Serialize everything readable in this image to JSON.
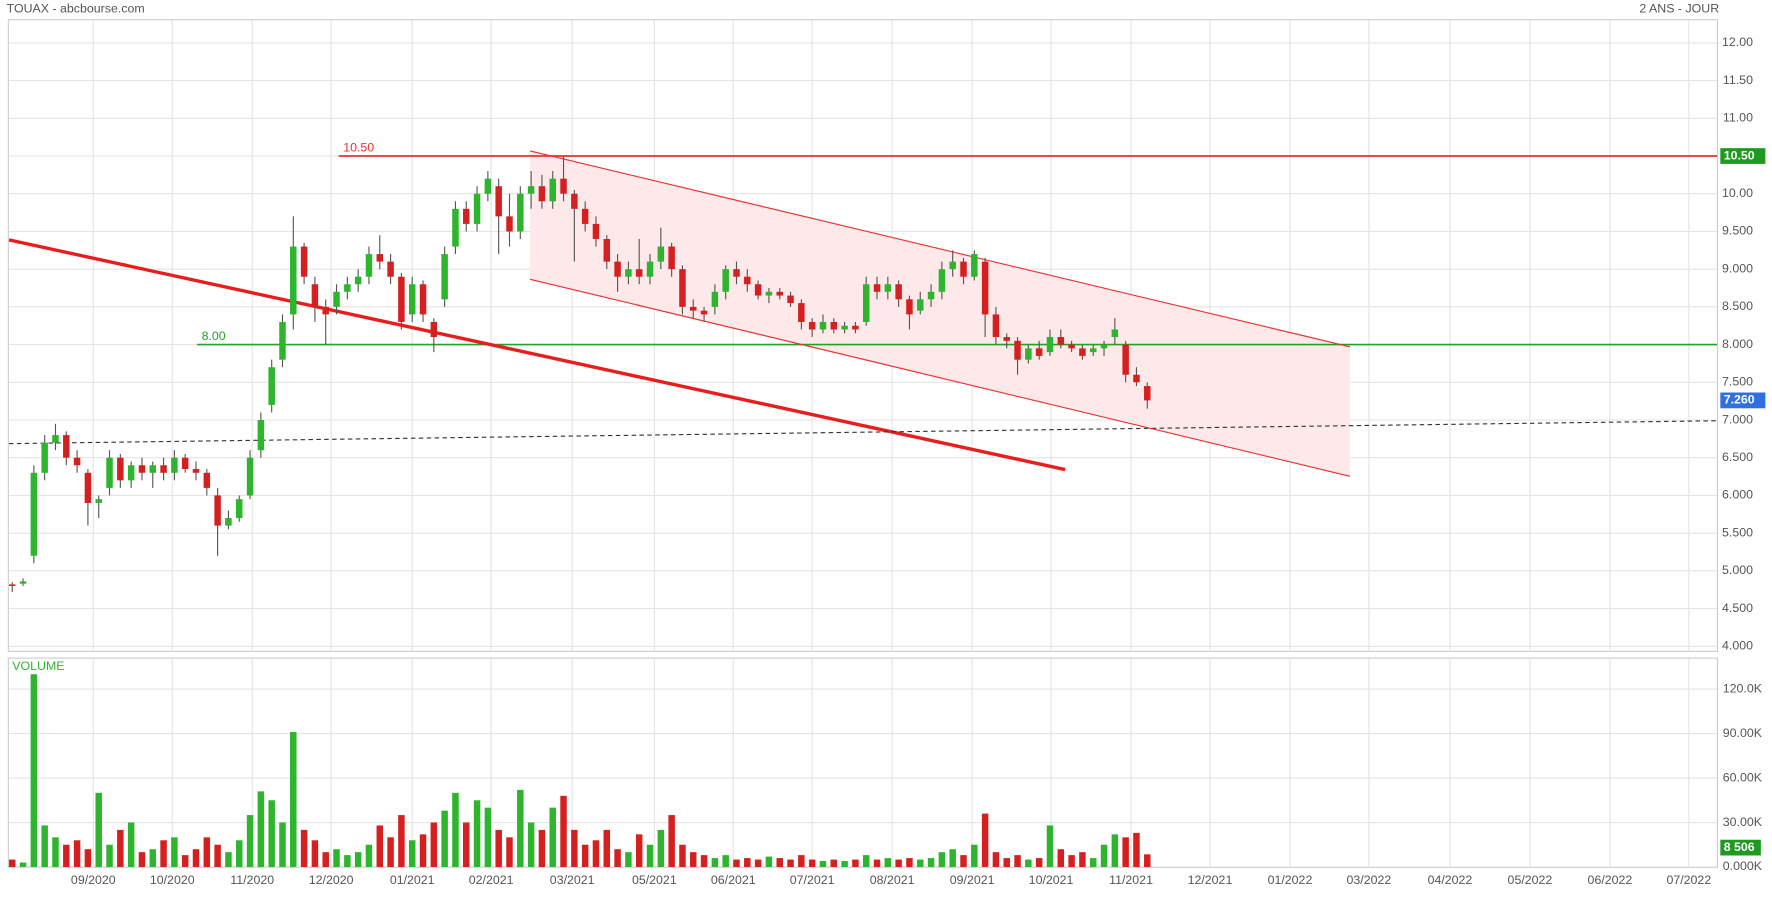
{
  "chart_data": {
    "type": "candlestick",
    "title": "TOUAX - abcbourse.com",
    "subtitle": "2 ANS - JOUR",
    "volume_label": "VOLUME",
    "up_color": "#2db52d",
    "down_color": "#d62020",
    "grid": true,
    "xlim": [
      -0.31,
      157.7
    ],
    "xticks": [
      {
        "value": 7.5,
        "label": "09/2020"
      },
      {
        "value": 14.8,
        "label": "10/2020"
      },
      {
        "value": 22.2,
        "label": "11/2020"
      },
      {
        "value": 29.5,
        "label": "12/2020"
      },
      {
        "value": 37,
        "label": "01/2021"
      },
      {
        "value": 44.3,
        "label": "02/2021"
      },
      {
        "value": 51.8,
        "label": "03/2021"
      },
      {
        "value": 59.4,
        "label": "05/2021"
      },
      {
        "value": 66.7,
        "label": "06/2021"
      },
      {
        "value": 74,
        "label": "07/2021"
      },
      {
        "value": 81.4,
        "label": "08/2021"
      },
      {
        "value": 88.8,
        "label": "09/2021"
      },
      {
        "value": 96.1,
        "label": "10/2021"
      },
      {
        "value": 103.5,
        "label": "11/2021"
      },
      {
        "value": 110.8,
        "label": "12/2021"
      },
      {
        "value": 118.2,
        "label": "01/2022"
      },
      {
        "value": 125.5,
        "label": "03/2022"
      },
      {
        "value": 133,
        "label": "04/2022"
      },
      {
        "value": 140.4,
        "label": "05/2022"
      },
      {
        "value": 147.8,
        "label": "06/2022"
      },
      {
        "value": 155.1,
        "label": "07/2022"
      }
    ],
    "ylim": [
      3.94,
      12.3
    ],
    "yticks": [
      {
        "value": 4,
        "label": "4.000"
      },
      {
        "value": 4.5,
        "label": "4.500"
      },
      {
        "value": 5,
        "label": "5.000"
      },
      {
        "value": 5.5,
        "label": "5.500"
      },
      {
        "value": 6,
        "label": "6.000"
      },
      {
        "value": 6.5,
        "label": "6.500"
      },
      {
        "value": 7,
        "label": "7.000"
      },
      {
        "value": 7.5,
        "label": "7.500"
      },
      {
        "value": 8,
        "label": "8.000"
      },
      {
        "value": 8.5,
        "label": "8.500"
      },
      {
        "value": 9,
        "label": "9.000"
      },
      {
        "value": 9.5,
        "label": "9.500"
      },
      {
        "value": 10,
        "label": "10.00"
      },
      {
        "value": 10.5,
        "label": "10.50"
      },
      {
        "value": 11,
        "label": "11.00"
      },
      {
        "value": 11.5,
        "label": "11.50"
      },
      {
        "value": 12,
        "label": "12.00"
      }
    ],
    "y2lim": [
      0,
      140500
    ],
    "y2ticks": [
      {
        "value": 0,
        "label": "0.000K"
      },
      {
        "value": 30000,
        "label": "30.00K"
      },
      {
        "value": 60000,
        "label": "60.00K"
      },
      {
        "value": 90000,
        "label": "90.00K"
      },
      {
        "value": 120000,
        "label": "120.0K"
      }
    ],
    "candles": [
      [
        4.82,
        4.85,
        4.72,
        4.8
      ],
      [
        4.83,
        4.9,
        4.8,
        4.86
      ],
      [
        5.2,
        6.4,
        5.1,
        6.3
      ],
      [
        6.3,
        6.8,
        6.2,
        6.7
      ],
      [
        6.7,
        6.95,
        6.6,
        6.8
      ],
      [
        6.8,
        6.85,
        6.4,
        6.5
      ],
      [
        6.5,
        6.6,
        6.3,
        6.4
      ],
      [
        6.3,
        6.35,
        5.6,
        5.9
      ],
      [
        5.9,
        6,
        5.7,
        5.95
      ],
      [
        6.1,
        6.6,
        6,
        6.5
      ],
      [
        6.5,
        6.55,
        6.1,
        6.2
      ],
      [
        6.2,
        6.45,
        6.1,
        6.4
      ],
      [
        6.4,
        6.5,
        6.2,
        6.3
      ],
      [
        6.3,
        6.45,
        6.1,
        6.4
      ],
      [
        6.4,
        6.5,
        6.2,
        6.3
      ],
      [
        6.3,
        6.6,
        6.2,
        6.5
      ],
      [
        6.5,
        6.55,
        6.3,
        6.35
      ],
      [
        6.35,
        6.45,
        6.2,
        6.3
      ],
      [
        6.3,
        6.35,
        6,
        6.1
      ],
      [
        6,
        6.1,
        5.2,
        5.6
      ],
      [
        5.6,
        5.8,
        5.55,
        5.7
      ],
      [
        5.7,
        6,
        5.65,
        5.95
      ],
      [
        6,
        6.6,
        5.95,
        6.5
      ],
      [
        6.6,
        7.1,
        6.5,
        7
      ],
      [
        7.2,
        7.8,
        7.1,
        7.7
      ],
      [
        7.8,
        8.4,
        7.7,
        8.3
      ],
      [
        8.4,
        9.7,
        8.2,
        9.3
      ],
      [
        9.3,
        9.35,
        8.8,
        8.9
      ],
      [
        8.8,
        8.9,
        8.3,
        8.5
      ],
      [
        8.5,
        8.6,
        8,
        8.4
      ],
      [
        8.5,
        8.8,
        8.4,
        8.7
      ],
      [
        8.7,
        8.9,
        8.6,
        8.8
      ],
      [
        8.8,
        9,
        8.7,
        8.9
      ],
      [
        8.9,
        9.3,
        8.8,
        9.2
      ],
      [
        9.2,
        9.45,
        9,
        9.1
      ],
      [
        9.1,
        9.2,
        8.8,
        8.9
      ],
      [
        8.9,
        8.95,
        8.2,
        8.3
      ],
      [
        8.4,
        8.9,
        8.3,
        8.8
      ],
      [
        8.8,
        8.85,
        8.3,
        8.4
      ],
      [
        8.3,
        8.35,
        7.9,
        8.1
      ],
      [
        8.6,
        9.3,
        8.5,
        9.2
      ],
      [
        9.3,
        9.9,
        9.2,
        9.8
      ],
      [
        9.8,
        9.9,
        9.5,
        9.6
      ],
      [
        9.6,
        10.1,
        9.5,
        10
      ],
      [
        10,
        10.3,
        9.9,
        10.2
      ],
      [
        10.1,
        10.2,
        9.2,
        9.7
      ],
      [
        9.7,
        10,
        9.3,
        9.5
      ],
      [
        9.5,
        10.1,
        9.4,
        10
      ],
      [
        10,
        10.3,
        9.8,
        10.1
      ],
      [
        10.1,
        10.25,
        9.8,
        9.9
      ],
      [
        9.9,
        10.3,
        9.8,
        10.2
      ],
      [
        10.2,
        10.5,
        9.9,
        10
      ],
      [
        10,
        10.05,
        9.1,
        9.8
      ],
      [
        9.8,
        9.9,
        9.5,
        9.6
      ],
      [
        9.6,
        9.7,
        9.3,
        9.4
      ],
      [
        9.4,
        9.45,
        9,
        9.1
      ],
      [
        9.1,
        9.2,
        8.7,
        8.9
      ],
      [
        8.9,
        9.1,
        8.8,
        9
      ],
      [
        9,
        9.4,
        8.8,
        8.9
      ],
      [
        8.9,
        9.2,
        8.8,
        9.1
      ],
      [
        9.1,
        9.55,
        9,
        9.3
      ],
      [
        9.3,
        9.35,
        8.9,
        9
      ],
      [
        9,
        9.05,
        8.4,
        8.5
      ],
      [
        8.5,
        8.6,
        8.35,
        8.45
      ],
      [
        8.45,
        8.5,
        8.3,
        8.4
      ],
      [
        8.5,
        8.8,
        8.4,
        8.7
      ],
      [
        8.7,
        9.05,
        8.6,
        9
      ],
      [
        9,
        9.1,
        8.8,
        8.9
      ],
      [
        8.9,
        9,
        8.7,
        8.8
      ],
      [
        8.8,
        8.85,
        8.6,
        8.65
      ],
      [
        8.65,
        8.75,
        8.55,
        8.7
      ],
      [
        8.7,
        8.75,
        8.6,
        8.65
      ],
      [
        8.65,
        8.7,
        8.5,
        8.55
      ],
      [
        8.55,
        8.6,
        8.2,
        8.3
      ],
      [
        8.3,
        8.35,
        8.1,
        8.2
      ],
      [
        8.2,
        8.4,
        8.15,
        8.3
      ],
      [
        8.3,
        8.35,
        8.15,
        8.2
      ],
      [
        8.2,
        8.3,
        8.15,
        8.25
      ],
      [
        8.25,
        8.3,
        8.15,
        8.2
      ],
      [
        8.3,
        8.9,
        8.25,
        8.8
      ],
      [
        8.8,
        8.9,
        8.6,
        8.7
      ],
      [
        8.7,
        8.9,
        8.6,
        8.8
      ],
      [
        8.8,
        8.85,
        8.5,
        8.6
      ],
      [
        8.6,
        8.65,
        8.2,
        8.4
      ],
      [
        8.45,
        8.7,
        8.4,
        8.6
      ],
      [
        8.6,
        8.8,
        8.5,
        8.7
      ],
      [
        8.7,
        9.1,
        8.6,
        9
      ],
      [
        9,
        9.25,
        8.9,
        9.1
      ],
      [
        9.1,
        9.15,
        8.8,
        8.9
      ],
      [
        8.9,
        9.25,
        8.85,
        9.2
      ],
      [
        9.1,
        9.15,
        8.1,
        8.4
      ],
      [
        8.4,
        8.5,
        8,
        8.1
      ],
      [
        8.1,
        8.15,
        7.95,
        8.05
      ],
      [
        8.05,
        8.1,
        7.6,
        7.8
      ],
      [
        7.8,
        8,
        7.75,
        7.95
      ],
      [
        7.95,
        8.05,
        7.8,
        7.85
      ],
      [
        7.9,
        8.2,
        7.85,
        8.1
      ],
      [
        8.1,
        8.2,
        7.95,
        8
      ],
      [
        8,
        8.05,
        7.9,
        7.95
      ],
      [
        7.95,
        8,
        7.8,
        7.85
      ],
      [
        7.9,
        8,
        7.85,
        7.95
      ],
      [
        7.95,
        8.05,
        7.85,
        8
      ],
      [
        8.1,
        8.35,
        8,
        8.2
      ],
      [
        8,
        8.05,
        7.5,
        7.6
      ],
      [
        7.6,
        7.7,
        7.45,
        7.5
      ],
      [
        7.45,
        7.5,
        7.15,
        7.26
      ]
    ],
    "volume": [
      5000,
      3000,
      130000,
      28000,
      20000,
      15000,
      18000,
      12000,
      50000,
      15000,
      25000,
      30000,
      10000,
      12000,
      18000,
      20000,
      8000,
      12000,
      20000,
      15000,
      10000,
      18000,
      35000,
      51000,
      45000,
      30000,
      91000,
      25000,
      18000,
      10000,
      12000,
      8000,
      10000,
      15000,
      28000,
      20000,
      35000,
      18000,
      22000,
      30000,
      38000,
      50000,
      30000,
      45000,
      40000,
      25000,
      20000,
      52000,
      30000,
      25000,
      40000,
      48000,
      25000,
      15000,
      18000,
      25000,
      12000,
      10000,
      22000,
      15000,
      25000,
      35000,
      15000,
      10000,
      8000,
      6000,
      8000,
      5000,
      6000,
      5000,
      7000,
      6000,
      5000,
      8000,
      5000,
      4000,
      5000,
      4000,
      5000,
      8000,
      5000,
      6000,
      5000,
      6000,
      5000,
      6000,
      10000,
      12000,
      8000,
      15000,
      36000,
      10000,
      6000,
      8000,
      5000,
      6000,
      28000,
      12000,
      8000,
      10000,
      6000,
      15000,
      22000,
      20000,
      23000,
      8506
    ],
    "last_price": {
      "value": 7.26,
      "label": "7.260"
    },
    "last_volume": {
      "value": 8506,
      "label": "8 506"
    },
    "levels": [
      {
        "value": 10.5,
        "label": "10.50",
        "color": "#e83030",
        "x_start": 30.2
      },
      {
        "value": 8,
        "label": "8.00",
        "color": "#1fa51f",
        "x_start": 17.1
      }
    ],
    "trendlines": [
      {
        "color": "#e81e1e",
        "width": 3,
        "dash": false,
        "points": [
          [
            -0.3,
            9.388
          ],
          [
            97.4,
            6.343
          ]
        ]
      },
      {
        "color": "#333333",
        "width": 1,
        "dash": true,
        "points": [
          [
            -0.3,
            6.687
          ],
          [
            157.7,
            6.99
          ]
        ]
      },
      {
        "color": "#e83030",
        "width": 1,
        "dash": false,
        "points": [
          [
            47.9,
            10.567
          ],
          [
            123.75,
            7.97
          ]
        ]
      },
      {
        "color": "#e83030",
        "width": 1,
        "dash": false,
        "points": [
          [
            47.9,
            8.866
          ],
          [
            123.75,
            6.254
          ]
        ]
      }
    ],
    "channel_fill": "#fde8ea"
  }
}
